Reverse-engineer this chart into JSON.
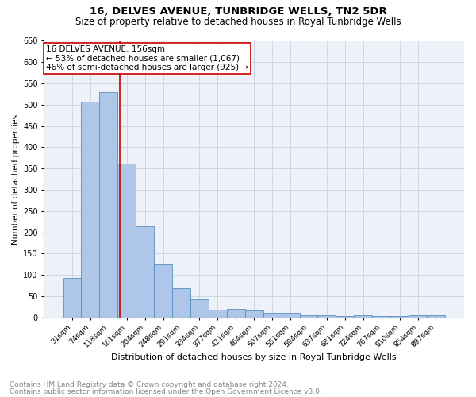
{
  "title1": "16, DELVES AVENUE, TUNBRIDGE WELLS, TN2 5DR",
  "title2": "Size of property relative to detached houses in Royal Tunbridge Wells",
  "xlabel": "Distribution of detached houses by size in Royal Tunbridge Wells",
  "ylabel": "Number of detached properties",
  "categories": [
    "31sqm",
    "74sqm",
    "118sqm",
    "161sqm",
    "204sqm",
    "248sqm",
    "291sqm",
    "334sqm",
    "377sqm",
    "421sqm",
    "464sqm",
    "507sqm",
    "551sqm",
    "594sqm",
    "637sqm",
    "681sqm",
    "724sqm",
    "767sqm",
    "810sqm",
    "854sqm",
    "897sqm"
  ],
  "values": [
    93,
    507,
    530,
    362,
    215,
    125,
    68,
    42,
    18,
    20,
    17,
    10,
    10,
    5,
    5,
    3,
    5,
    3,
    3,
    5,
    5
  ],
  "bar_color": "#aec6e8",
  "bar_edge_color": "#5a8fc0",
  "ylim": [
    0,
    650
  ],
  "yticks": [
    0,
    50,
    100,
    150,
    200,
    250,
    300,
    350,
    400,
    450,
    500,
    550,
    600,
    650
  ],
  "red_line_x": 2.62,
  "annotation_line1": "16 DELVES AVENUE: 156sqm",
  "annotation_line2": "← 53% of detached houses are smaller (1,067)",
  "annotation_line3": "46% of semi-detached houses are larger (925) →",
  "annotation_box_color": "#ffffff",
  "annotation_box_edge": "#cc0000",
  "red_line_color": "#cc0000",
  "grid_color": "#c8d8e8",
  "background_color": "#eef2f8",
  "footer1": "Contains HM Land Registry data © Crown copyright and database right 2024.",
  "footer2": "Contains public sector information licensed under the Open Government Licence v3.0.",
  "title1_fontsize": 9.5,
  "title2_fontsize": 8.5,
  "annotation_fontsize": 7.5,
  "footer_fontsize": 6.5,
  "ylabel_fontsize": 7.5,
  "xlabel_fontsize": 8.0,
  "xtick_fontsize": 6.5,
  "ytick_fontsize": 7.0
}
